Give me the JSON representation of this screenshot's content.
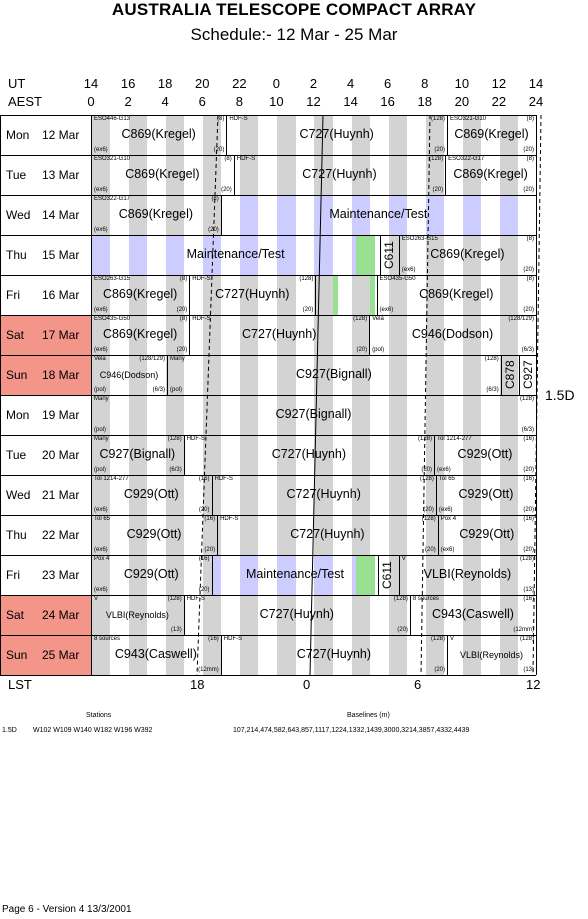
{
  "header": {
    "title": "AUSTRALIA TELESCOPE COMPACT ARRAY",
    "subtitle": "Schedule:- 12 Mar - 25 Mar",
    "ut_label": "UT",
    "aest_label": "AEST",
    "ut_ticks": [
      "14",
      "16",
      "18",
      "20",
      "22",
      "0",
      "2",
      "4",
      "6",
      "8",
      "10",
      "12",
      "14"
    ],
    "aest_ticks": [
      "0",
      "2",
      "4",
      "6",
      "8",
      "10",
      "12",
      "14",
      "16",
      "18",
      "20",
      "22",
      "24"
    ]
  },
  "array_config": "1.5D",
  "lst": {
    "label": "LST",
    "ticks": [
      "18",
      "0",
      "6",
      "12"
    ]
  },
  "days": [
    {
      "dow": "Mon",
      "date": "12 Mar",
      "weekend": false,
      "blocks": [
        {
          "start": 0,
          "end": 7.3,
          "program": "C869(Kregel)",
          "source": "ESO446-G13",
          "right": "(8)",
          "bl": "(ex6)",
          "br": "(20)"
        },
        {
          "start": 7.3,
          "end": 19.2,
          "program": "C727(Huynh)",
          "source": "HDF-S",
          "right": "(128)",
          "bl": "",
          "br": "(20)"
        },
        {
          "start": 19.2,
          "end": 24,
          "program": "C869(Kregel)",
          "source": "ESO321-G10",
          "right": "(8)",
          "bl": "",
          "br": "(20)"
        }
      ]
    },
    {
      "dow": "Tue",
      "date": "13 Mar",
      "weekend": false,
      "blocks": [
        {
          "start": 0,
          "end": 7.7,
          "program": "C869(Kregel)",
          "source": "ESO321-G10",
          "right": "(8)",
          "bl": "(ex6)",
          "br": "(20)"
        },
        {
          "start": 7.7,
          "end": 19.1,
          "program": "C727(Huynh)",
          "source": "HDF-S",
          "right": "(128)",
          "bl": "",
          "br": "(20)"
        },
        {
          "start": 19.1,
          "end": 24,
          "program": "C869(Kregel)",
          "source": "ESO322-G17",
          "right": "(8)",
          "bl": "",
          "br": "(20)"
        }
      ]
    },
    {
      "dow": "Wed",
      "date": "14 Mar",
      "weekend": false,
      "blocks": [
        {
          "start": 0,
          "end": 7.0,
          "program": "C869(Kregel)",
          "source": "ESO322-G17",
          "right": "(8)",
          "bl": "(ex6)",
          "br": "(20)"
        },
        {
          "start": 7.0,
          "end": 24,
          "program": "Maintenance/Test",
          "source": "",
          "right": "",
          "bl": "",
          "br": "",
          "maint": true
        }
      ]
    },
    {
      "dow": "Thu",
      "date": "15 Mar",
      "weekend": false,
      "blocks": [
        {
          "start": 0,
          "end": 15.6,
          "program": "Maintenance/Test",
          "source": "",
          "right": "",
          "bl": "",
          "br": "",
          "maint": true
        },
        {
          "start": 15.6,
          "end": 16.6,
          "program": "C611",
          "source": "",
          "right": "",
          "bl": "",
          "br": "",
          "vertical": true
        },
        {
          "start": 16.6,
          "end": 24,
          "program": "C869(Kregel)",
          "source": "ESO263-G15",
          "right": "(8)",
          "bl": "(ex6)",
          "br": "(20)"
        }
      ]
    },
    {
      "dow": "Fri",
      "date": "16 Mar",
      "weekend": false,
      "blocks": [
        {
          "start": 0,
          "end": 5.3,
          "program": "C869(Kregel)",
          "source": "ESO263-G15",
          "right": "(8)",
          "bl": "(ex6)",
          "br": "(20)"
        },
        {
          "start": 5.3,
          "end": 12.1,
          "program": "C727(Huynh)",
          "source": "HDF-S",
          "right": "(128)",
          "bl": "",
          "br": "(20)"
        },
        {
          "start": 12.1,
          "end": 15.4,
          "program": "",
          "source": "",
          "right": "",
          "bl": "",
          "br": ""
        },
        {
          "start": 15.4,
          "end": 24,
          "program": "C869(Kregel)",
          "source": "ESO435-G50",
          "right": "(8)",
          "bl": "(ex6)",
          "br": "(20)"
        }
      ]
    },
    {
      "dow": "Sat",
      "date": "17 Mar",
      "weekend": true,
      "blocks": [
        {
          "start": 0,
          "end": 5.3,
          "program": "C869(Kregel)",
          "source": "ESO435-G50",
          "right": "(8)",
          "bl": "(ex6)",
          "br": "(20)"
        },
        {
          "start": 5.3,
          "end": 15.0,
          "program": "C727(Huynh)",
          "source": "HDF-S",
          "right": "(128)",
          "bl": "",
          "br": "(20)"
        },
        {
          "start": 15.0,
          "end": 24,
          "program": "C946(Dodson)",
          "source": "Vela",
          "right": "(128/129)",
          "bl": "(pol)",
          "br": "(6/3)"
        }
      ]
    },
    {
      "dow": "Sun",
      "date": "18 Mar",
      "weekend": true,
      "blocks": [
        {
          "start": 0,
          "end": 4.1,
          "program": "C946(Dodson)",
          "source": "Vela",
          "right": "(128/129)",
          "bl": "(pol)",
          "br": "(6/3)",
          "small": true
        },
        {
          "start": 4.1,
          "end": 22.1,
          "program": "C927(Bignall)",
          "source": "Many",
          "right": "(128)",
          "bl": "(pol)",
          "br": "(6/3)"
        },
        {
          "start": 22.1,
          "end": 23.1,
          "program": "C878",
          "source": "",
          "right": "",
          "bl": "",
          "br": "",
          "vertical": true
        },
        {
          "start": 23.1,
          "end": 24,
          "program": "C927",
          "source": "",
          "right": "",
          "bl": "",
          "br": "",
          "vertical": true
        }
      ]
    },
    {
      "dow": "Mon",
      "date": "19 Mar",
      "weekend": false,
      "blocks": [
        {
          "start": 0,
          "end": 24,
          "program": "C927(Bignall)",
          "source": "Many",
          "right": "(128)",
          "bl": "(pol)",
          "br": "(6/3)"
        }
      ]
    },
    {
      "dow": "Tue",
      "date": "20 Mar",
      "weekend": false,
      "blocks": [
        {
          "start": 0,
          "end": 5.0,
          "program": "C927(Bignall)",
          "source": "Many",
          "right": "(128)",
          "bl": "(pol)",
          "br": "(6/3)"
        },
        {
          "start": 5.0,
          "end": 18.5,
          "program": "C727(Huynh)",
          "source": "HDF-S",
          "right": "(128)",
          "bl": "",
          "br": "(20)"
        },
        {
          "start": 18.5,
          "end": 24,
          "program": "C929(Ott)",
          "source": "Tol 1214-277",
          "right": "(16)",
          "bl": "(ex6)",
          "br": "(20)"
        }
      ]
    },
    {
      "dow": "Wed",
      "date": "21 Mar",
      "weekend": false,
      "blocks": [
        {
          "start": 0,
          "end": 6.5,
          "program": "C929(Ott)",
          "source": "Tol 1214-277",
          "right": "(16)",
          "bl": "(ex6)",
          "br": "(20)"
        },
        {
          "start": 6.5,
          "end": 18.6,
          "program": "C727(Huynh)",
          "source": "HDF-S",
          "right": "(128)",
          "bl": "",
          "br": "(20)"
        },
        {
          "start": 18.6,
          "end": 24,
          "program": "C929(Ott)",
          "source": "Tol 65",
          "right": "(16)",
          "bl": "(ex6)",
          "br": "(20)"
        }
      ]
    },
    {
      "dow": "Thu",
      "date": "22 Mar",
      "weekend": false,
      "blocks": [
        {
          "start": 0,
          "end": 6.8,
          "program": "C929(Ott)",
          "source": "Tol 65",
          "right": "(16)",
          "bl": "(ex6)",
          "br": "(20)"
        },
        {
          "start": 6.8,
          "end": 18.7,
          "program": "C727(Huynh)",
          "source": "HDF-S",
          "right": "(128)",
          "bl": "",
          "br": "(20)"
        },
        {
          "start": 18.7,
          "end": 24,
          "program": "C929(Ott)",
          "source": "Pox 4",
          "right": "(16)",
          "bl": "(ex6)",
          "br": "(20)"
        }
      ]
    },
    {
      "dow": "Fri",
      "date": "23 Mar",
      "weekend": false,
      "blocks": [
        {
          "start": 0,
          "end": 6.5,
          "program": "C929(Ott)",
          "source": "Pox 4",
          "right": "(16)",
          "bl": "(ex6)",
          "br": "(20)"
        },
        {
          "start": 6.5,
          "end": 15.5,
          "program": "Maintenance/Test",
          "source": "",
          "right": "",
          "bl": "",
          "br": "",
          "maint": true
        },
        {
          "start": 15.5,
          "end": 16.6,
          "program": "C611",
          "source": "",
          "right": "",
          "bl": "",
          "br": "",
          "vertical": true
        },
        {
          "start": 16.6,
          "end": 24,
          "program": "VLBI(Reynolds)",
          "source": "V",
          "right": "(128)",
          "bl": "",
          "br": "(13)"
        }
      ]
    },
    {
      "dow": "Sat",
      "date": "24 Mar",
      "weekend": true,
      "blocks": [
        {
          "start": 0,
          "end": 5.0,
          "program": "VLBI(Reynolds)",
          "source": "V",
          "right": "(128)",
          "bl": "",
          "br": "(13)",
          "small": true
        },
        {
          "start": 5.0,
          "end": 17.2,
          "program": "C727(Huynh)",
          "source": "HDF-S",
          "right": "(128)",
          "bl": "",
          "br": "(20)"
        },
        {
          "start": 17.2,
          "end": 24,
          "program": "C943(Caswell)",
          "source": "8 sources",
          "right": "(16)",
          "bl": "",
          "br": "(12mm)"
        }
      ]
    },
    {
      "dow": "Sun",
      "date": "25 Mar",
      "weekend": true,
      "blocks": [
        {
          "start": 0,
          "end": 7.0,
          "program": "C943(Caswell)",
          "source": "8 sources",
          "right": "(16)",
          "bl": "",
          "br": "(12mm)"
        },
        {
          "start": 7.0,
          "end": 19.2,
          "program": "C727(Huynh)",
          "source": "HDF-S",
          "right": "(128)",
          "bl": "",
          "br": "(20)"
        },
        {
          "start": 19.2,
          "end": 24,
          "program": "VLBI(Reynolds)",
          "source": "V",
          "right": "(128)",
          "bl": "",
          "br": "(13)",
          "small": true
        }
      ]
    }
  ],
  "stations": {
    "title": "Stations",
    "config": "1.5D",
    "list": "W102 W109 W140 W182 W196 W392"
  },
  "baselines": {
    "title": "Baselines (m)",
    "list": "107,214,474,582,643,857,1117,1224,1332,1439,3000,3214,3857,4332,4439"
  },
  "footer": "Page 6 - Version 4  13/3/2001"
}
